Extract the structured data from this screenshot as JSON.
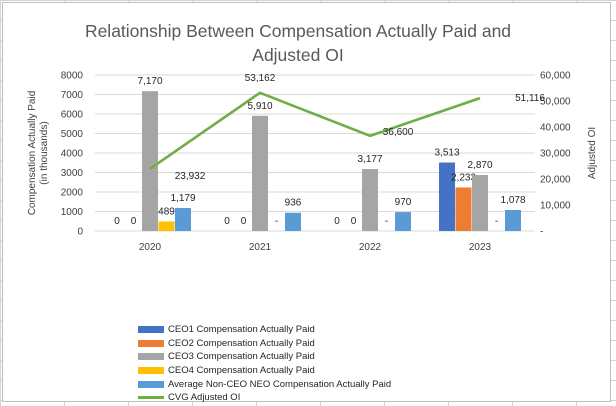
{
  "chart_data": {
    "type": "bar",
    "title_line1": "Relationship Between Compensation Actually Paid and",
    "title_line2": "Adjusted OI",
    "categories": [
      "2020",
      "2021",
      "2022",
      "2023"
    ],
    "y_left": {
      "label_line1": "Compensation Actually Paid",
      "label_line2": "(in thousands)",
      "lim": [
        0,
        8000
      ],
      "ticks": [
        "0",
        "1000",
        "2000",
        "3000",
        "4000",
        "5000",
        "6000",
        "7000",
        "8000"
      ],
      "tick_values": [
        0,
        1000,
        2000,
        3000,
        4000,
        5000,
        6000,
        7000,
        8000
      ]
    },
    "y_right": {
      "label": "Adjusted OI",
      "lim": [
        0,
        60000
      ],
      "ticks": [
        "-",
        "10,000",
        "20,000",
        "30,000",
        "40,000",
        "50,000",
        "60,000"
      ],
      "tick_values": [
        0,
        10000,
        20000,
        30000,
        40000,
        50000,
        60000
      ]
    },
    "series": [
      {
        "name": "CEO1 Compensation Actually Paid",
        "color": "#4472c4",
        "values": [
          0,
          0,
          0,
          3513
        ],
        "labels": [
          "0",
          "0",
          "0",
          "3,513"
        ]
      },
      {
        "name": "CEO2 Compensation Actually Paid",
        "color": "#ed7d31",
        "values": [
          0,
          0,
          0,
          2233
        ],
        "labels": [
          "0",
          "0",
          "0",
          "2,233"
        ]
      },
      {
        "name": "CEO3 Compensation Actually Paid",
        "color": "#a5a5a5",
        "values": [
          7170,
          5910,
          3177,
          2870
        ],
        "labels": [
          "7,170",
          "5,910",
          "3,177",
          "2,870"
        ]
      },
      {
        "name": "CEO4 Compensation Actually Paid",
        "color": "#ffc000",
        "values": [
          489,
          0,
          0,
          0
        ],
        "labels": [
          "489",
          "-",
          "-",
          "-"
        ]
      },
      {
        "name": "Average Non-CEO NEO Compensation Actually Paid",
        "color": "#5b9bd5",
        "values": [
          1179,
          936,
          970,
          1078
        ],
        "labels": [
          "1,179",
          "936",
          "970",
          "1,078"
        ]
      }
    ],
    "line_series": {
      "name": "CVG Adjusted OI",
      "color": "#70ad47",
      "axis": "right",
      "values": [
        23932,
        53162,
        36600,
        51116
      ],
      "labels": [
        "23,932",
        "53,162",
        "36,600",
        "51,116"
      ]
    }
  }
}
